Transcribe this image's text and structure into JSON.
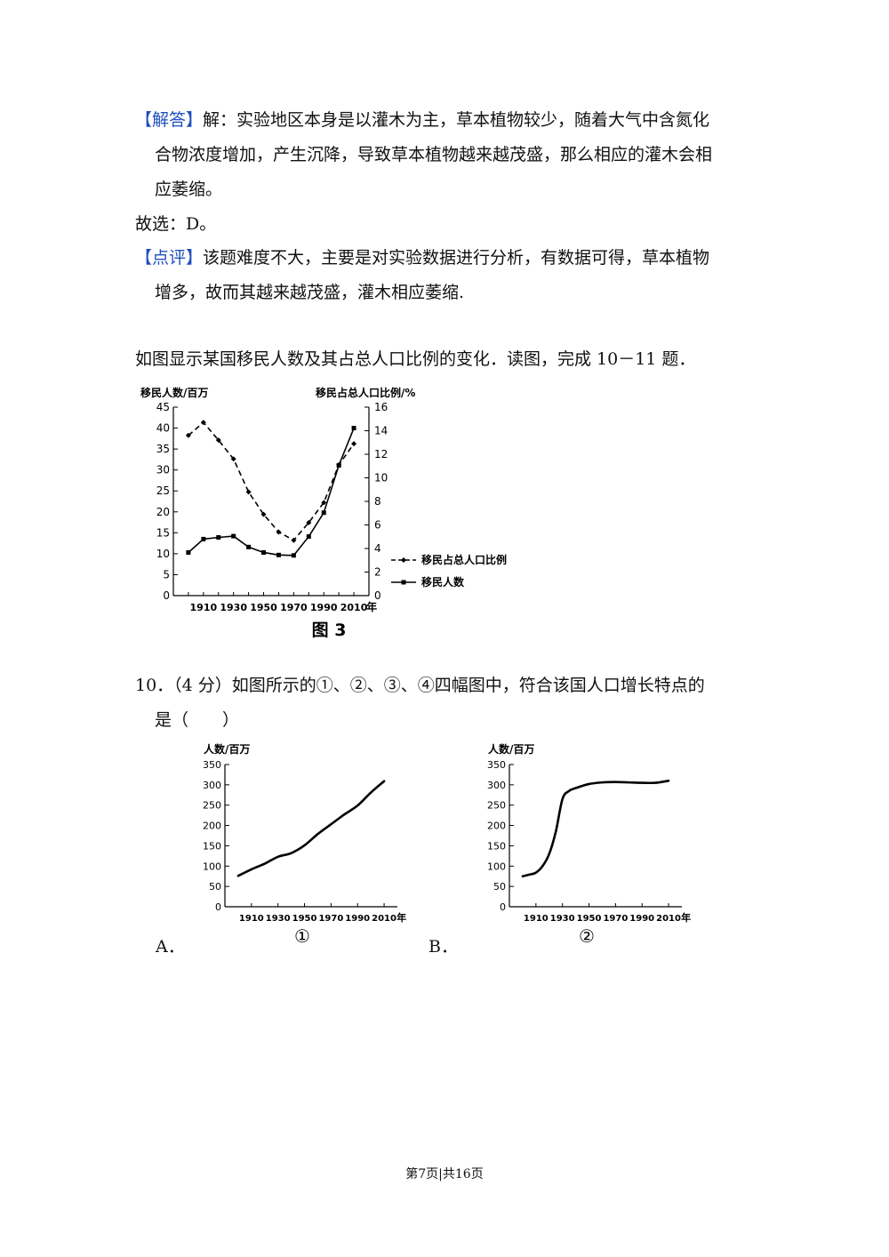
{
  "answer": {
    "tag": "【解答】",
    "text": "解：实验地区本身是以灌木为主，草本植物较少，随着大气中含氮化",
    "line2": "合物浓度增加，产生沉降，导致草本植物越来越茂盛，那么相应的灌木会相",
    "line3": "应萎缩。"
  },
  "choice_line": "故选：D。",
  "comment": {
    "tag": "【点评】",
    "text": "该题难度不大，主要是对实验数据进行分析，有数据可得，草本植物",
    "line2": "增多，故而其越来越茂盛，灌木相应萎缩."
  },
  "intro": "如图显示某国移民人数及其占总人口比例的变化．读图，完成 10－11 题．",
  "question": {
    "line1": "10．（4 分）如图所示的①、②、③、④四幅图中，符合该国人口增长特点的",
    "line2": "是（　　）"
  },
  "options": {
    "a": "A．",
    "b": "B．"
  },
  "footer": "第7页|共16页",
  "chart_data": [
    {
      "type": "line",
      "title": "图 3",
      "ylabel": "移民人数/百万",
      "y2label": "移民占总人口比例/%",
      "xunit": "年",
      "x": [
        1900,
        1910,
        1920,
        1930,
        1940,
        1950,
        1960,
        1970,
        1980,
        1990,
        2000,
        2010
      ],
      "xticks": [
        "1910",
        "1930",
        "1950",
        "1970",
        "1990",
        "2010"
      ],
      "yticks": [
        "0",
        "5",
        "10",
        "15",
        "20",
        "25",
        "30",
        "35",
        "40",
        "45"
      ],
      "y2ticks": [
        "0",
        "2",
        "4",
        "6",
        "8",
        "10",
        "12",
        "14",
        "16"
      ],
      "ylim": [
        0,
        45
      ],
      "y2lim": [
        0,
        16
      ],
      "series": [
        {
          "name": "移民占总人口比例",
          "axis": "right",
          "style": "dashed",
          "values": [
            13.6,
            14.7,
            13.2,
            11.6,
            8.8,
            6.9,
            5.4,
            4.7,
            6.2,
            7.9,
            11.1,
            12.9
          ]
        },
        {
          "name": "移民人数",
          "axis": "left",
          "style": "solid",
          "values": [
            10.3,
            13.5,
            13.9,
            14.2,
            11.6,
            10.3,
            9.7,
            9.6,
            14.1,
            19.8,
            31.1,
            40.0
          ]
        }
      ],
      "legend": "right"
    },
    {
      "type": "line",
      "title": "①",
      "ylabel": "人数/百万",
      "xunit": "年",
      "x": [
        1900,
        1910,
        1920,
        1930,
        1940,
        1950,
        1960,
        1970,
        1980,
        1990,
        2000,
        2010
      ],
      "xticks": [
        "1910",
        "1930",
        "1950",
        "1970",
        "1990",
        "2010"
      ],
      "yticks": [
        "0",
        "50",
        "100",
        "150",
        "200",
        "250",
        "300",
        "350"
      ],
      "ylim": [
        0,
        350
      ],
      "values": [
        76,
        92,
        106,
        123,
        132,
        151,
        179,
        203,
        227,
        249,
        281,
        309
      ]
    },
    {
      "type": "line",
      "title": "②",
      "ylabel": "人数/百万",
      "xunit": "年",
      "x": [
        1900,
        1905,
        1910,
        1915,
        1920,
        1925,
        1930,
        1935,
        1940,
        1950,
        1960,
        1970,
        1980,
        1990,
        2000,
        2010
      ],
      "xticks": [
        "1910",
        "1930",
        "1950",
        "1970",
        "1990",
        "2010"
      ],
      "yticks": [
        "0",
        "50",
        "100",
        "150",
        "200",
        "250",
        "300",
        "350"
      ],
      "ylim": [
        0,
        350
      ],
      "values": [
        75,
        79,
        84,
        100,
        130,
        185,
        265,
        285,
        292,
        302,
        306,
        307,
        306,
        305,
        305,
        310
      ]
    }
  ]
}
